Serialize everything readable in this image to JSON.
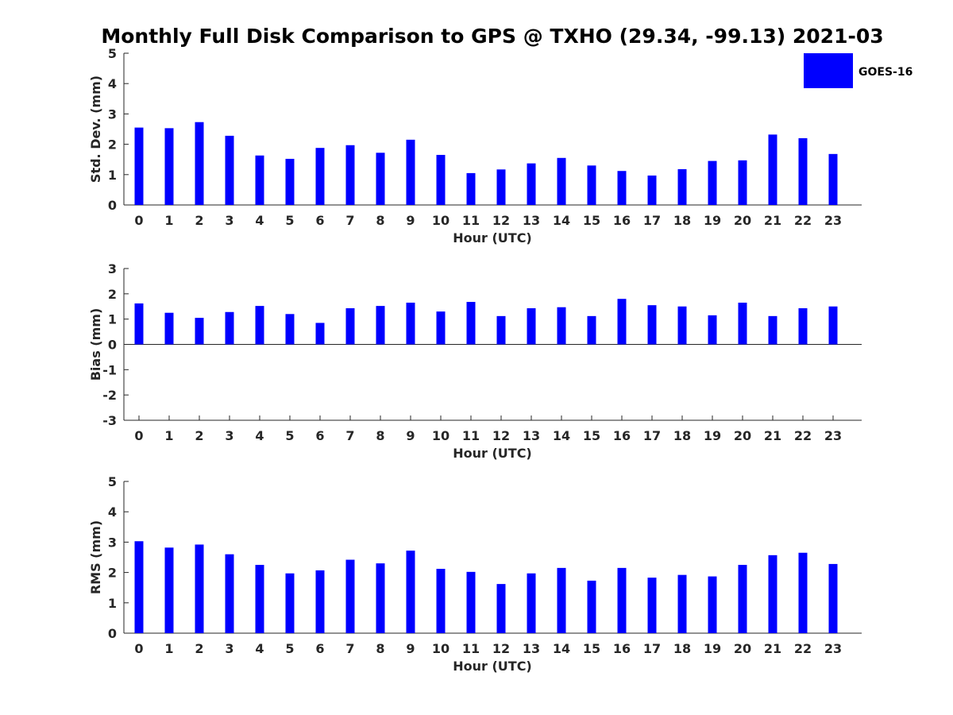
{
  "title": "Monthly Full Disk Comparison to GPS @ TXHO (29.34, -99.13) 2021-03",
  "legend": {
    "label": "GOES-16",
    "color": "#0000ff",
    "placement": "top-right"
  },
  "chart_data": [
    {
      "type": "bar",
      "xlabel": "Hour (UTC)",
      "ylabel": "Std. Dev. (mm)",
      "ylim": [
        0,
        5
      ],
      "yticks": [
        "0",
        "1",
        "2",
        "3",
        "4",
        "5"
      ],
      "categories": [
        "0",
        "1",
        "2",
        "3",
        "4",
        "5",
        "6",
        "7",
        "8",
        "9",
        "10",
        "11",
        "12",
        "13",
        "14",
        "15",
        "16",
        "17",
        "18",
        "19",
        "20",
        "21",
        "22",
        "23"
      ],
      "series": [
        {
          "name": "GOES-16",
          "color": "#0000ff",
          "values": [
            2.55,
            2.53,
            2.73,
            2.28,
            1.63,
            1.52,
            1.88,
            1.97,
            1.72,
            2.15,
            1.65,
            1.05,
            1.17,
            1.37,
            1.55,
            1.3,
            1.12,
            0.97,
            1.18,
            1.45,
            1.47,
            2.32,
            2.2,
            1.68
          ]
        }
      ]
    },
    {
      "type": "bar",
      "xlabel": "Hour (UTC)",
      "ylabel": "Bias (mm)",
      "ylim": [
        -3,
        3
      ],
      "yticks": [
        "-3",
        "-2",
        "-1",
        "0",
        "1",
        "2",
        "3"
      ],
      "categories": [
        "0",
        "1",
        "2",
        "3",
        "4",
        "5",
        "6",
        "7",
        "8",
        "9",
        "10",
        "11",
        "12",
        "13",
        "14",
        "15",
        "16",
        "17",
        "18",
        "19",
        "20",
        "21",
        "22",
        "23"
      ],
      "series": [
        {
          "name": "GOES-16",
          "color": "#0000ff",
          "values": [
            1.62,
            1.25,
            1.05,
            1.28,
            1.52,
            1.2,
            0.85,
            1.43,
            1.52,
            1.65,
            1.3,
            1.68,
            1.12,
            1.43,
            1.47,
            1.12,
            1.8,
            1.55,
            1.5,
            1.15,
            1.65,
            1.12,
            1.43,
            1.5
          ]
        }
      ]
    },
    {
      "type": "bar",
      "xlabel": "Hour (UTC)",
      "ylabel": "RMS (mm)",
      "ylim": [
        0,
        5
      ],
      "yticks": [
        "0",
        "1",
        "2",
        "3",
        "4",
        "5"
      ],
      "categories": [
        "0",
        "1",
        "2",
        "3",
        "4",
        "5",
        "6",
        "7",
        "8",
        "9",
        "10",
        "11",
        "12",
        "13",
        "14",
        "15",
        "16",
        "17",
        "18",
        "19",
        "20",
        "21",
        "22",
        "23"
      ],
      "series": [
        {
          "name": "GOES-16",
          "color": "#0000ff",
          "values": [
            3.03,
            2.82,
            2.92,
            2.6,
            2.25,
            1.97,
            2.07,
            2.42,
            2.3,
            2.72,
            2.12,
            2.02,
            1.62,
            1.97,
            2.15,
            1.73,
            2.15,
            1.83,
            1.92,
            1.87,
            2.25,
            2.57,
            2.65,
            2.28
          ]
        }
      ]
    }
  ]
}
